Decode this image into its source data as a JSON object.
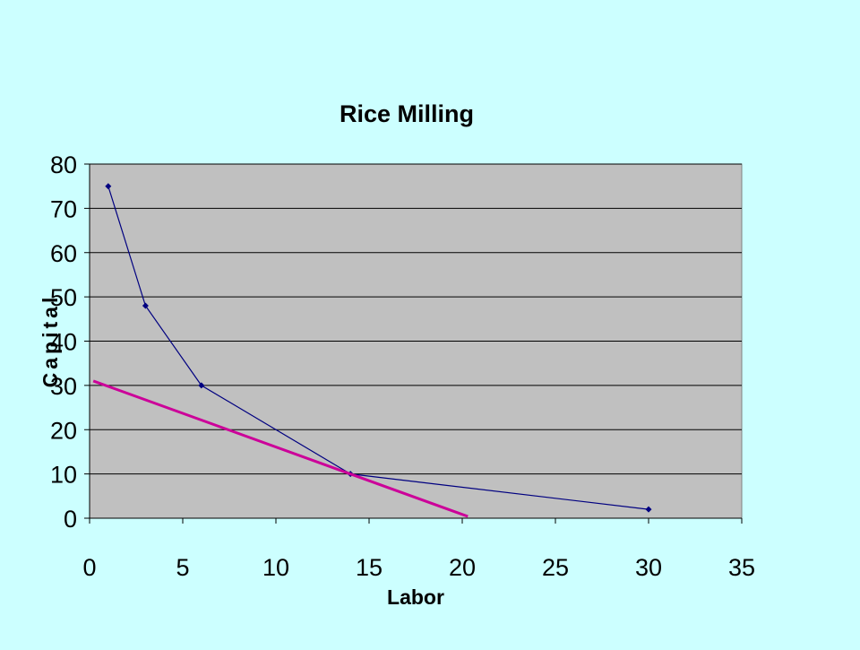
{
  "colors": {
    "background": "#ccffff",
    "plot_area": "#c0c0c0",
    "gridline": "#000000",
    "series_line": "#000080",
    "tangent_line": "#cc0099"
  },
  "chart_data": {
    "type": "line",
    "title": "Rice Milling",
    "xlabel": "Labor",
    "ylabel": "Capital",
    "xlim": [
      0,
      35
    ],
    "ylim": [
      0,
      80
    ],
    "x_ticks": [
      "0",
      "5",
      "10",
      "15",
      "20",
      "25",
      "30",
      "35"
    ],
    "y_ticks": [
      "0",
      "10",
      "20",
      "30",
      "40",
      "50",
      "60",
      "70",
      "80"
    ],
    "grid": "horizontal",
    "legend": "none",
    "series": [
      {
        "type": "line",
        "markers": true,
        "points": [
          {
            "x": 1,
            "y": 75
          },
          {
            "x": 3,
            "y": 48
          },
          {
            "x": 6,
            "y": 30
          },
          {
            "x": 14,
            "y": 10
          },
          {
            "x": 30,
            "y": 2
          }
        ]
      },
      {
        "type": "line",
        "markers": false,
        "points": [
          {
            "x": 0.2,
            "y": 31
          },
          {
            "x": 20.3,
            "y": 0.4
          }
        ]
      }
    ]
  }
}
